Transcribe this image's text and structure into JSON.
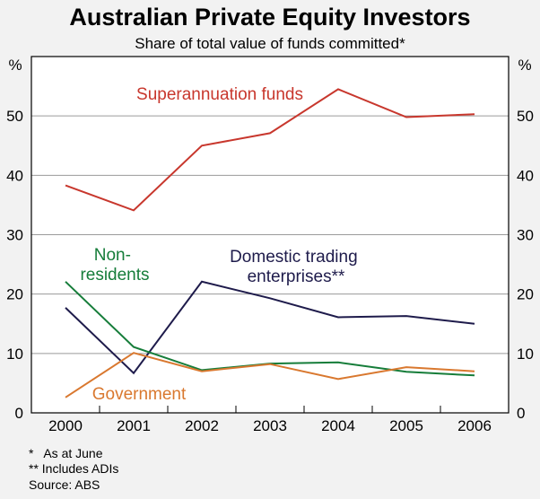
{
  "chart_data": {
    "type": "line",
    "title": "Australian Private Equity Investors",
    "subtitle": "Share of total value of funds committed*",
    "y_unit_left": "%",
    "y_unit_right": "%",
    "x": [
      "2000",
      "2001",
      "2002",
      "2003",
      "2004",
      "2005",
      "2006"
    ],
    "ylim": [
      0,
      60
    ],
    "yticks": [
      0,
      10,
      20,
      30,
      40,
      50
    ],
    "grid": true,
    "series": [
      {
        "name": "Superannuation funds",
        "color": "#c8372d",
        "values": [
          38.3,
          34.1,
          45.0,
          47.1,
          54.5,
          49.8,
          50.3
        ]
      },
      {
        "name_lines": [
          "Domestic trading",
          "enterprises**"
        ],
        "color": "#1e1b4b",
        "values": [
          17.7,
          6.7,
          22.1,
          19.3,
          16.1,
          16.3,
          15.0
        ]
      },
      {
        "name_lines": [
          "Non-",
          "residents"
        ],
        "color": "#167d3a",
        "values": [
          22.1,
          11.1,
          7.2,
          8.3,
          8.5,
          6.9,
          6.3
        ]
      },
      {
        "name": "Government",
        "color": "#d9782f",
        "values": [
          2.6,
          10.1,
          7.0,
          8.2,
          5.7,
          7.7,
          7.0
        ]
      }
    ],
    "notes": [
      "*   As at June",
      "** Includes ADIs",
      "Source: ABS"
    ]
  }
}
